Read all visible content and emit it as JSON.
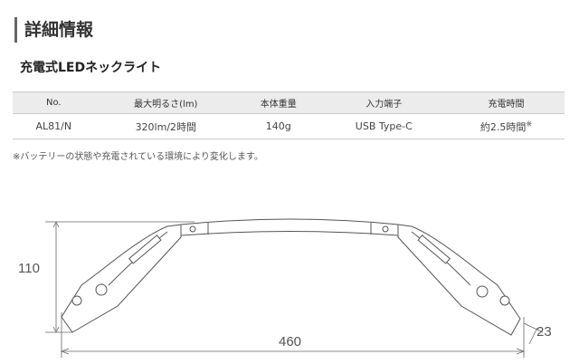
{
  "section_title": "詳細情報",
  "product_name": "充電式LEDネックライト",
  "spec_table": {
    "headers": [
      "No.",
      "最大明るさ(lm)",
      "本体重量",
      "入力端子",
      "充電時間"
    ],
    "rows": [
      [
        "AL81/N",
        "320lm/2時間",
        "140g",
        "USB Type-C",
        "約2.5時間"
      ]
    ],
    "footnote_mark": "※"
  },
  "note": "※バッテリーの状態や充電されている環境により変化します。",
  "diagram": {
    "height_label": "110",
    "width_label": "460",
    "thickness_label": "23"
  }
}
